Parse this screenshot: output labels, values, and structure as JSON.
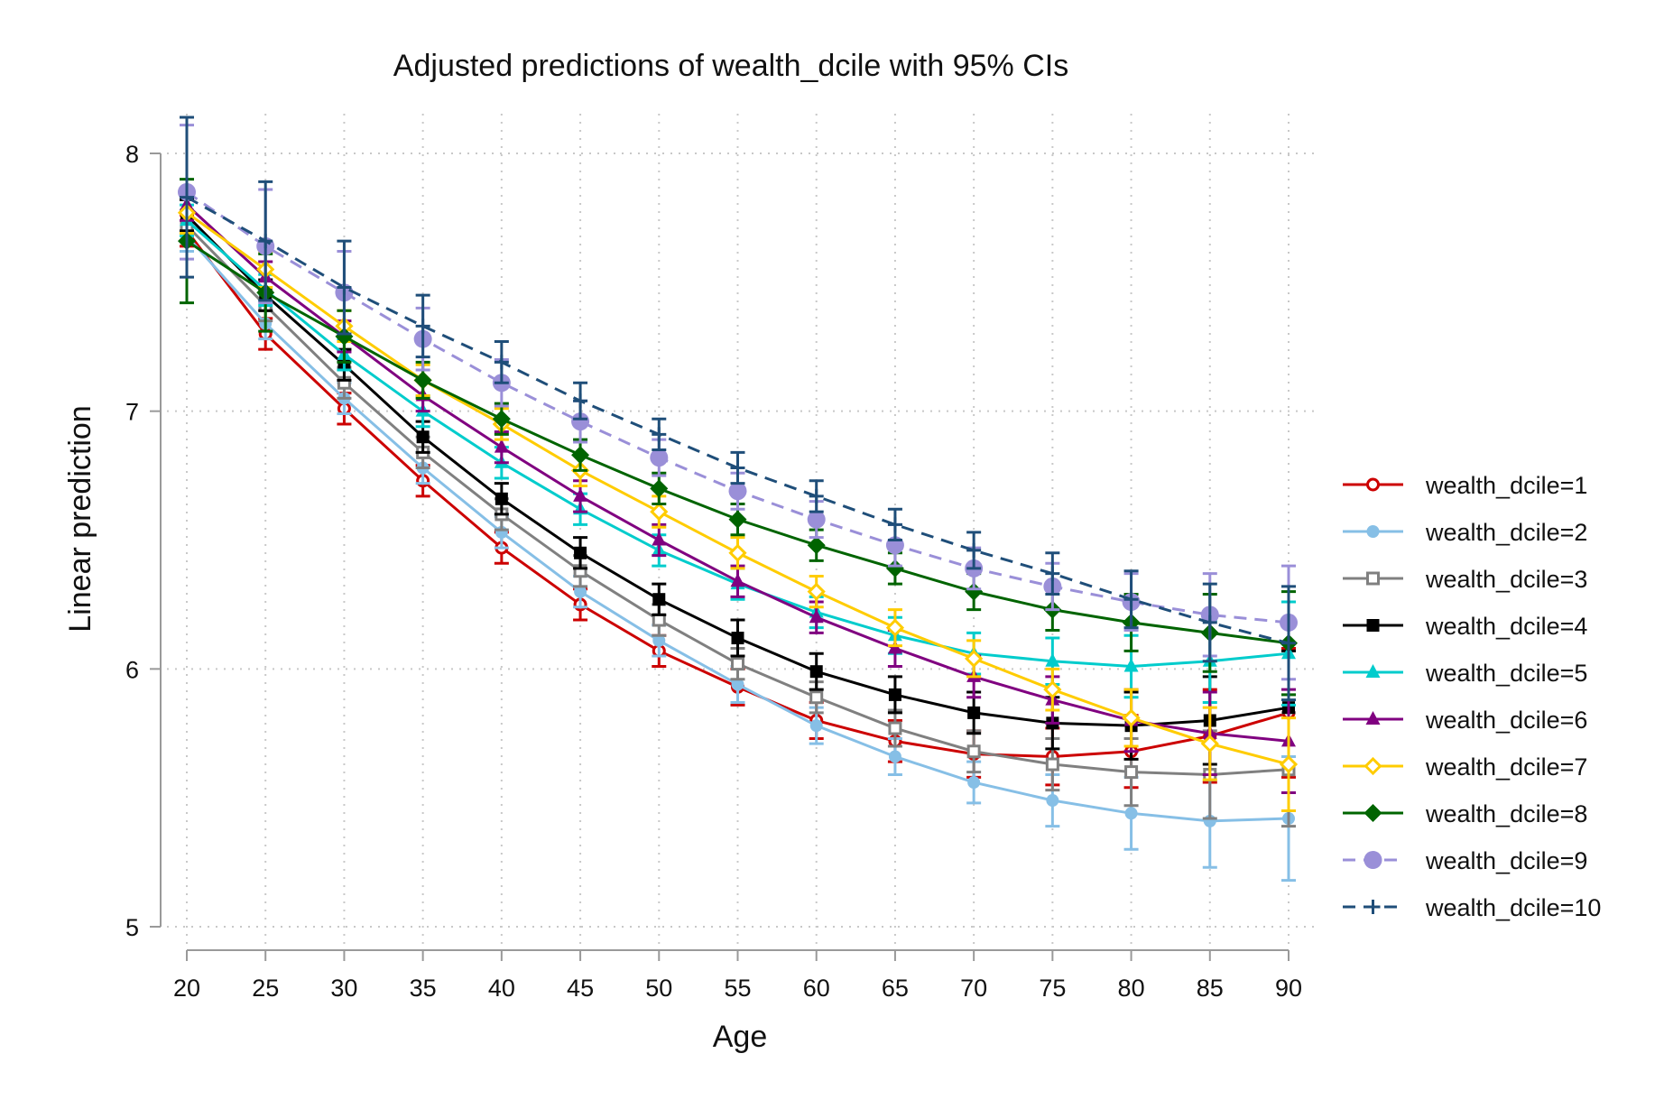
{
  "chart_data": {
    "type": "line",
    "title": "Adjusted predictions of wealth_dcile with 95% CIs",
    "xlabel": "Age",
    "ylabel": "Linear prediction",
    "x": [
      20,
      25,
      30,
      35,
      40,
      45,
      50,
      55,
      60,
      65,
      70,
      75,
      80,
      85,
      90
    ],
    "xticks": [
      "20",
      "25",
      "30",
      "35",
      "40",
      "45",
      "50",
      "55",
      "60",
      "65",
      "70",
      "75",
      "80",
      "85",
      "90"
    ],
    "xlim": [
      20,
      90
    ],
    "yticks": [
      "5",
      "6",
      "7",
      "8"
    ],
    "ylim": [
      5,
      8
    ],
    "grid": true,
    "legend_position": "right",
    "error_bars": "95% CI",
    "series": [
      {
        "name": "wealth_dcile=1",
        "color": "#cc0000",
        "marker": "circle-open",
        "dash": false,
        "values": [
          7.7,
          7.3,
          7.01,
          6.73,
          6.47,
          6.25,
          6.07,
          5.93,
          5.8,
          5.72,
          5.67,
          5.66,
          5.68,
          5.74,
          5.83
        ],
        "ci": [
          0.06,
          0.06,
          0.06,
          0.06,
          0.06,
          0.06,
          0.06,
          0.07,
          0.07,
          0.08,
          0.09,
          0.11,
          0.14,
          0.18,
          0.25
        ]
      },
      {
        "name": "wealth_dcile=2",
        "color": "#86bfe6",
        "marker": "circle",
        "dash": false,
        "values": [
          7.68,
          7.34,
          7.05,
          6.78,
          6.53,
          6.3,
          6.11,
          5.94,
          5.78,
          5.66,
          5.56,
          5.49,
          5.44,
          5.41,
          5.42
        ],
        "ci": [
          0.06,
          0.06,
          0.06,
          0.06,
          0.06,
          0.06,
          0.06,
          0.07,
          0.07,
          0.07,
          0.08,
          0.1,
          0.14,
          0.18,
          0.24
        ]
      },
      {
        "name": "wealth_dcile=3",
        "color": "#808080",
        "marker": "square-open",
        "dash": false,
        "values": [
          7.72,
          7.41,
          7.11,
          6.84,
          6.6,
          6.38,
          6.19,
          6.02,
          5.89,
          5.77,
          5.68,
          5.63,
          5.6,
          5.59,
          5.61
        ],
        "ci": [
          0.06,
          0.06,
          0.06,
          0.06,
          0.06,
          0.06,
          0.06,
          0.06,
          0.06,
          0.07,
          0.08,
          0.1,
          0.13,
          0.17,
          0.22
        ]
      },
      {
        "name": "wealth_dcile=4",
        "color": "#000000",
        "marker": "square",
        "dash": false,
        "values": [
          7.76,
          7.45,
          7.18,
          6.9,
          6.66,
          6.45,
          6.27,
          6.12,
          5.99,
          5.9,
          5.83,
          5.79,
          5.78,
          5.8,
          5.85
        ],
        "ci": [
          0.06,
          0.06,
          0.06,
          0.06,
          0.06,
          0.06,
          0.06,
          0.07,
          0.07,
          0.07,
          0.08,
          0.1,
          0.13,
          0.17,
          0.22
        ]
      },
      {
        "name": "wealth_dcile=5",
        "color": "#00cccc",
        "marker": "triangle",
        "dash": false,
        "values": [
          7.74,
          7.47,
          7.22,
          7.0,
          6.8,
          6.62,
          6.46,
          6.33,
          6.22,
          6.13,
          6.06,
          6.03,
          6.01,
          6.03,
          6.06
        ],
        "ci": [
          0.06,
          0.06,
          0.06,
          0.06,
          0.06,
          0.06,
          0.06,
          0.06,
          0.06,
          0.07,
          0.08,
          0.09,
          0.12,
          0.16,
          0.2
        ]
      },
      {
        "name": "wealth_dcile=6",
        "color": "#800080",
        "marker": "triangle",
        "dash": false,
        "values": [
          7.8,
          7.52,
          7.29,
          7.06,
          6.86,
          6.67,
          6.5,
          6.34,
          6.2,
          6.08,
          5.97,
          5.88,
          5.8,
          5.75,
          5.72
        ],
        "ci": [
          0.06,
          0.06,
          0.06,
          0.06,
          0.06,
          0.06,
          0.06,
          0.06,
          0.06,
          0.07,
          0.08,
          0.09,
          0.12,
          0.16,
          0.2
        ]
      },
      {
        "name": "wealth_dcile=7",
        "color": "#ffcc00",
        "marker": "diamond-open",
        "dash": false,
        "values": [
          7.77,
          7.55,
          7.33,
          7.12,
          6.95,
          6.77,
          6.61,
          6.45,
          6.3,
          6.16,
          6.04,
          5.92,
          5.81,
          5.71,
          5.63
        ],
        "ci": [
          0.08,
          0.07,
          0.06,
          0.06,
          0.06,
          0.06,
          0.06,
          0.06,
          0.06,
          0.07,
          0.07,
          0.08,
          0.11,
          0.14,
          0.18
        ]
      },
      {
        "name": "wealth_dcile=8",
        "color": "#006400",
        "marker": "diamond",
        "dash": false,
        "values": [
          7.66,
          7.46,
          7.29,
          7.12,
          6.97,
          6.83,
          6.7,
          6.58,
          6.48,
          6.39,
          6.3,
          6.23,
          6.18,
          6.14,
          6.1
        ],
        "ci": [
          0.24,
          0.15,
          0.1,
          0.07,
          0.06,
          0.06,
          0.06,
          0.06,
          0.06,
          0.06,
          0.07,
          0.08,
          0.11,
          0.15,
          0.2
        ]
      },
      {
        "name": "wealth_dcile=9",
        "color": "#9a8fd8",
        "marker": "circle-large",
        "dash": true,
        "values": [
          7.85,
          7.64,
          7.46,
          7.28,
          7.11,
          6.96,
          6.82,
          6.69,
          6.58,
          6.48,
          6.39,
          6.32,
          6.26,
          6.21,
          6.18
        ],
        "ci": [
          0.26,
          0.22,
          0.16,
          0.12,
          0.09,
          0.08,
          0.07,
          0.07,
          0.07,
          0.08,
          0.08,
          0.09,
          0.11,
          0.16,
          0.22
        ]
      },
      {
        "name": "wealth_dcile=10",
        "color": "#1f4e79",
        "marker": "plus",
        "dash": true,
        "values": [
          7.83,
          7.66,
          7.48,
          7.33,
          7.19,
          7.04,
          6.91,
          6.78,
          6.67,
          6.56,
          6.46,
          6.37,
          6.27,
          6.18,
          6.1
        ],
        "ci": [
          0.31,
          0.23,
          0.18,
          0.12,
          0.08,
          0.07,
          0.06,
          0.06,
          0.06,
          0.06,
          0.07,
          0.08,
          0.11,
          0.15,
          0.22
        ]
      }
    ]
  }
}
